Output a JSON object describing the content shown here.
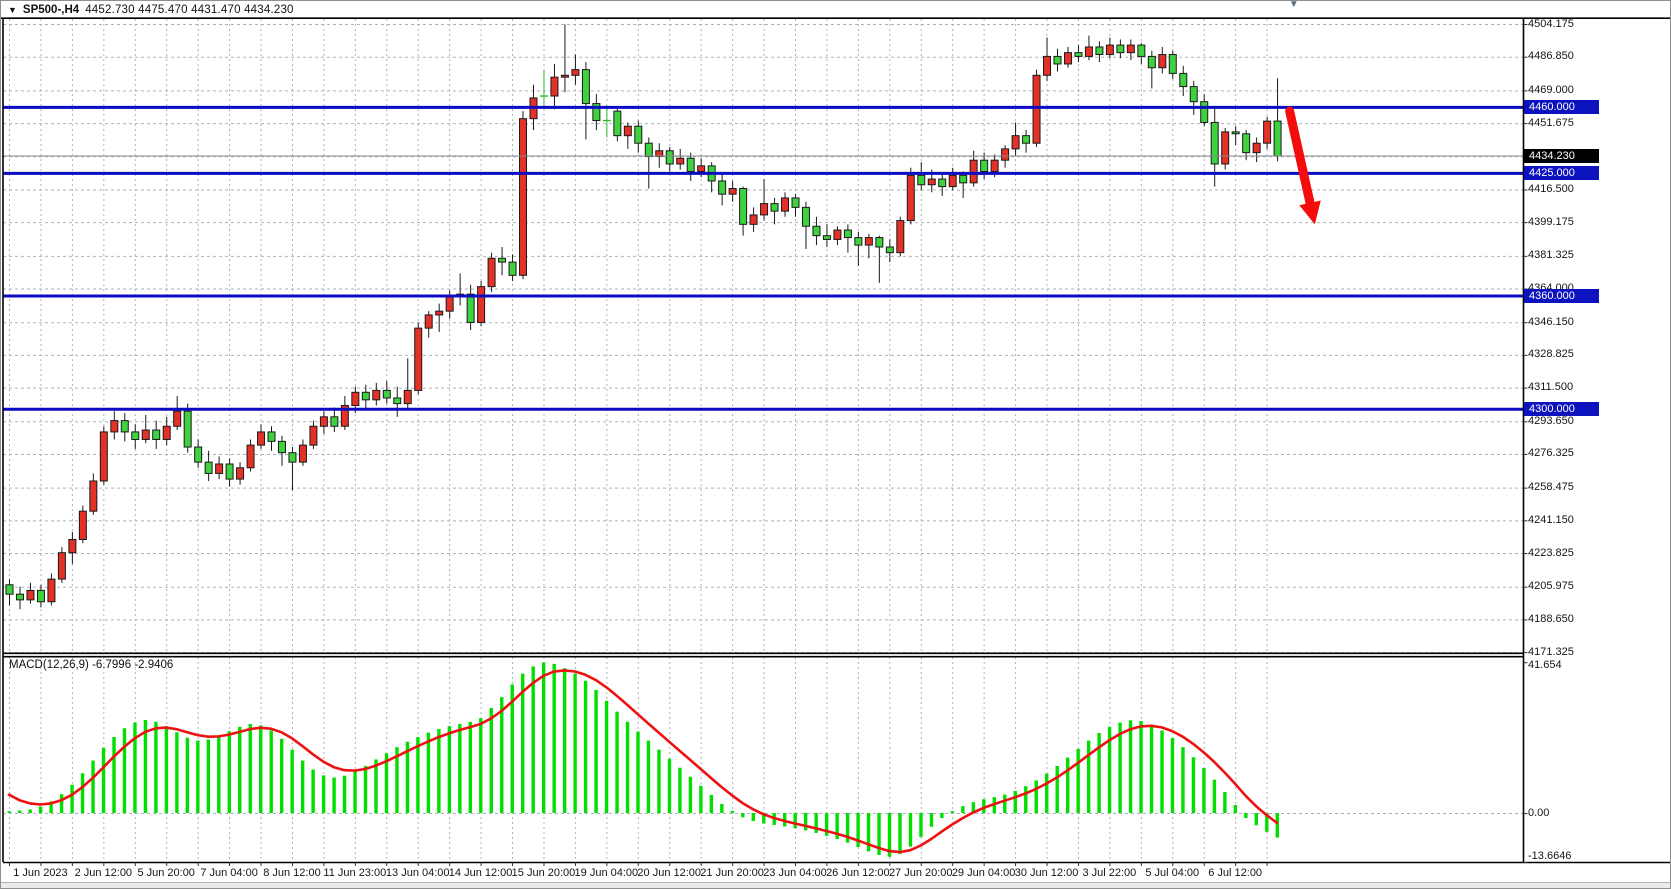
{
  "window": {
    "title": {
      "symbol": "SP500-,H4",
      "ohlc_text": "4452.730 4475.470 4431.470 4434.230",
      "open": "4452.730",
      "high": "4475.470",
      "low": "4431.470",
      "close": "4434.230"
    }
  },
  "indicator_label": {
    "name": "MACD(12,26,9)",
    "main_value": "-6.7996",
    "signal_value": "-2.9406"
  },
  "price_axis": {
    "labels": [
      "4504.175",
      "4486.850",
      "4469.000",
      "4451.675",
      "4416.500",
      "4399.175",
      "4381.325",
      "4364.000",
      "4346.150",
      "4328.825",
      "4311.500",
      "4293.650",
      "4276.325",
      "4258.475",
      "4241.150",
      "4223.825",
      "4205.975",
      "4188.650",
      "4171.325"
    ],
    "label_values": [
      4504.175,
      4486.85,
      4469.0,
      4451.675,
      4416.5,
      4399.175,
      4381.325,
      4364.0,
      4346.15,
      4328.825,
      4311.5,
      4293.65,
      4276.325,
      4258.475,
      4241.15,
      4223.825,
      4205.975,
      4188.65,
      4171.325
    ],
    "badges": [
      {
        "text": "4460.000",
        "price": 4460.0,
        "type": "level"
      },
      {
        "text": "4434.230",
        "price": 4434.23,
        "type": "current"
      },
      {
        "text": "4425.000",
        "price": 4425.0,
        "type": "level"
      },
      {
        "text": "4360.000",
        "price": 4360.0,
        "type": "level"
      },
      {
        "text": "4300.000",
        "price": 4300.0,
        "type": "level"
      }
    ]
  },
  "macd_axis": {
    "labels": [
      "41.654",
      "0.00",
      "-13.6646"
    ],
    "label_values": [
      41.654,
      0.0,
      -13.6646
    ]
  },
  "time_axis": {
    "labels": [
      {
        "text": "1 Jun 2023",
        "bar": 3
      },
      {
        "text": "2 Jun 12:00",
        "bar": 9
      },
      {
        "text": "5 Jun 20:00",
        "bar": 15
      },
      {
        "text": "7 Jun 04:00",
        "bar": 21
      },
      {
        "text": "8 Jun 12:00",
        "bar": 27
      },
      {
        "text": "11 Jun 23:00",
        "bar": 33
      },
      {
        "text": "13 Jun 04:00",
        "bar": 39
      },
      {
        "text": "14 Jun 12:00",
        "bar": 45
      },
      {
        "text": "15 Jun 20:00",
        "bar": 51
      },
      {
        "text": "19 Jun 04:00",
        "bar": 57
      },
      {
        "text": "20 Jun 12:00",
        "bar": 63
      },
      {
        "text": "21 Jun 20:00",
        "bar": 69
      },
      {
        "text": "23 Jun 04:00",
        "bar": 75
      },
      {
        "text": "26 Jun 12:00",
        "bar": 81
      },
      {
        "text": "27 Jun 20:00",
        "bar": 87
      },
      {
        "text": "29 Jun 04:00",
        "bar": 93
      },
      {
        "text": "30 Jun 12:00",
        "bar": 99
      },
      {
        "text": "3 Jul 22:00",
        "bar": 105
      },
      {
        "text": "5 Jul 04:00",
        "bar": 111
      },
      {
        "text": "6 Jul 12:00",
        "bar": 117
      }
    ]
  },
  "colors": {
    "bull": "#e33128",
    "bear": "#3ed23e",
    "candle_edge": "#1a1a1a",
    "macd_hist": "#00df00",
    "signal": "#ee1111",
    "hline": "#0b0bc4",
    "badge_level": "#0c12bd",
    "badge_current": "#000000",
    "grid": "#a9b3bf",
    "current_price_line": "#8a8a8a",
    "arrow": "#f40b0b",
    "green_doji": "#2eb82e"
  },
  "chart_data": {
    "type": "candlestick",
    "symbol": "SP500-",
    "timeframe": "H4",
    "price_ylim": [
      4171.325,
      4504.175
    ],
    "grid": true,
    "horizontal_lines": [
      4460.0,
      4425.0,
      4360.0,
      4300.0
    ],
    "current_price": 4434.23,
    "gridline_prices": [
      4504.175,
      4486.85,
      4469.0,
      4451.675,
      4434.1,
      4416.5,
      4399.175,
      4381.325,
      4364.0,
      4346.15,
      4328.825,
      4311.5,
      4293.65,
      4276.325,
      4258.475,
      4241.15,
      4223.825,
      4205.975,
      4188.65,
      4171.325
    ],
    "candles_format": "[open,high,low,close] per H4 bar, oldest first",
    "candles": [
      [
        4207,
        4210,
        4196,
        4202
      ],
      [
        4202,
        4206,
        4194,
        4199
      ],
      [
        4199,
        4208,
        4197,
        4204
      ],
      [
        4204,
        4207,
        4195,
        4198
      ],
      [
        4198,
        4213,
        4196,
        4210
      ],
      [
        4210,
        4227,
        4208,
        4224
      ],
      [
        4224,
        4235,
        4218,
        4231
      ],
      [
        4231,
        4249,
        4229,
        4246
      ],
      [
        4246,
        4266,
        4244,
        4262
      ],
      [
        4262,
        4291,
        4260,
        4288
      ],
      [
        4288,
        4299,
        4284,
        4294
      ],
      [
        4294,
        4298,
        4283,
        4288
      ],
      [
        4288,
        4292,
        4279,
        4284
      ],
      [
        4284,
        4297,
        4282,
        4289
      ],
      [
        4289,
        4294,
        4279,
        4284
      ],
      [
        4284,
        4296,
        4281,
        4291
      ],
      [
        4291,
        4307,
        4289,
        4299
      ],
      [
        4299,
        4303,
        4277,
        4280
      ],
      [
        4280,
        4284,
        4269,
        4272
      ],
      [
        4272,
        4278,
        4262,
        4266
      ],
      [
        4266,
        4275,
        4263,
        4271
      ],
      [
        4271,
        4274,
        4259,
        4263
      ],
      [
        4263,
        4272,
        4260,
        4269
      ],
      [
        4269,
        4284,
        4267,
        4281
      ],
      [
        4281,
        4292,
        4279,
        4288
      ],
      [
        4288,
        4291,
        4278,
        4283
      ],
      [
        4283,
        4286,
        4270,
        4277
      ],
      [
        4277,
        4280,
        4257,
        4272
      ],
      [
        4272,
        4284,
        4270,
        4281
      ],
      [
        4281,
        4294,
        4279,
        4291
      ],
      [
        4291,
        4299,
        4287,
        4296
      ],
      [
        4296,
        4301,
        4288,
        4291
      ],
      [
        4291,
        4307,
        4289,
        4302
      ],
      [
        4302,
        4312,
        4298,
        4309
      ],
      [
        4309,
        4313,
        4300,
        4305
      ],
      [
        4305,
        4314,
        4302,
        4310
      ],
      [
        4310,
        4315,
        4303,
        4306
      ],
      [
        4306,
        4312,
        4296,
        4303
      ],
      [
        4303,
        4327,
        4300,
        4310
      ],
      [
        4310,
        4346,
        4308,
        4343
      ],
      [
        4343,
        4352,
        4338,
        4350
      ],
      [
        4350,
        4356,
        4341,
        4352
      ],
      [
        4352,
        4363,
        4348,
        4360
      ],
      [
        4360,
        4372,
        4355,
        4361
      ],
      [
        4361,
        4366,
        4342,
        4346
      ],
      [
        4346,
        4368,
        4344,
        4365
      ],
      [
        4365,
        4383,
        4362,
        4380
      ],
      [
        4380,
        4386,
        4371,
        4378
      ],
      [
        4378,
        4382,
        4368,
        4371
      ],
      [
        4371,
        4458,
        4369,
        4454
      ],
      [
        4454,
        4472,
        4448,
        4465
      ],
      [
        4466,
        4480,
        4460,
        4466
      ],
      [
        4466,
        4483,
        4459,
        4476
      ],
      [
        4476,
        4504,
        4468,
        4477
      ],
      [
        4477,
        4488,
        4472,
        4480
      ],
      [
        4480,
        4484,
        4443,
        4462
      ],
      [
        4462,
        4467,
        4448,
        4453
      ],
      [
        4453,
        4461,
        4444,
        4453
      ],
      [
        4458,
        4460,
        4442,
        4445
      ],
      [
        4445,
        4452,
        4438,
        4450
      ],
      [
        4450,
        4453,
        4436,
        4441
      ],
      [
        4441,
        4444,
        4417,
        4434
      ],
      [
        4434,
        4441,
        4428,
        4437
      ],
      [
        4437,
        4439,
        4426,
        4430
      ],
      [
        4430,
        4438,
        4427,
        4433
      ],
      [
        4433,
        4436,
        4421,
        4426
      ],
      [
        4426,
        4433,
        4423,
        4429
      ],
      [
        4429,
        4431,
        4415,
        4421
      ],
      [
        4421,
        4425,
        4408,
        4414
      ],
      [
        4414,
        4421,
        4410,
        4417
      ],
      [
        4417,
        4418,
        4392,
        4398
      ],
      [
        4398,
        4407,
        4394,
        4403
      ],
      [
        4403,
        4422,
        4400,
        4409
      ],
      [
        4409,
        4412,
        4398,
        4405
      ],
      [
        4405,
        4415,
        4402,
        4412
      ],
      [
        4412,
        4414,
        4402,
        4407
      ],
      [
        4407,
        4410,
        4385,
        4397
      ],
      [
        4397,
        4402,
        4387,
        4392
      ],
      [
        4392,
        4398,
        4386,
        4390
      ],
      [
        4390,
        4397,
        4387,
        4395
      ],
      [
        4395,
        4398,
        4383,
        4391
      ],
      [
        4391,
        4394,
        4376,
        4387
      ],
      [
        4387,
        4393,
        4380,
        4391
      ],
      [
        4391,
        4392,
        4367,
        4386
      ],
      [
        4386,
        4390,
        4378,
        4383
      ],
      [
        4383,
        4402,
        4381,
        4400
      ],
      [
        4400,
        4428,
        4398,
        4424
      ],
      [
        4424,
        4431,
        4416,
        4419
      ],
      [
        4419,
        4427,
        4415,
        4422
      ],
      [
        4422,
        4425,
        4413,
        4418
      ],
      [
        4418,
        4428,
        4416,
        4424
      ],
      [
        4424,
        4426,
        4412,
        4420
      ],
      [
        4420,
        4437,
        4418,
        4432
      ],
      [
        4432,
        4436,
        4422,
        4426
      ],
      [
        4426,
        4435,
        4423,
        4432
      ],
      [
        4432,
        4440,
        4428,
        4438
      ],
      [
        4438,
        4452,
        4434,
        4445
      ],
      [
        4445,
        4448,
        4436,
        4441
      ],
      [
        4441,
        4480,
        4439,
        4477
      ],
      [
        4477,
        4497,
        4474,
        4487
      ],
      [
        4487,
        4491,
        4479,
        4483
      ],
      [
        4483,
        4492,
        4481,
        4489
      ],
      [
        4489,
        4493,
        4484,
        4487
      ],
      [
        4487,
        4498,
        4485,
        4492
      ],
      [
        4492,
        4495,
        4484,
        4488
      ],
      [
        4488,
        4497,
        4486,
        4493
      ],
      [
        4493,
        4496,
        4486,
        4489
      ],
      [
        4489,
        4496,
        4485,
        4493
      ],
      [
        4493,
        4494,
        4483,
        4487
      ],
      [
        4487,
        4490,
        4470,
        4481
      ],
      [
        4481,
        4492,
        4478,
        4488
      ],
      [
        4488,
        4490,
        4475,
        4478
      ],
      [
        4478,
        4482,
        4466,
        4471
      ],
      [
        4471,
        4474,
        4456,
        4463
      ],
      [
        4463,
        4467,
        4450,
        4452
      ],
      [
        4452,
        4460,
        4418,
        4430
      ],
      [
        4430,
        4449,
        4427,
        4447
      ],
      [
        4447,
        4450,
        4440,
        4446
      ],
      [
        4446,
        4448,
        4432,
        4436
      ],
      [
        4436,
        4444,
        4431,
        4441
      ],
      [
        4441,
        4455,
        4438,
        4452.7
      ],
      [
        4452.73,
        4475.47,
        4431.47,
        4434.23
      ]
    ],
    "green_doji_bars": [
      51,
      57
    ],
    "macd": {
      "params": "12,26,9",
      "ylim": [
        -13.6646,
        41.654
      ],
      "last_main": -6.7996,
      "last_signal": -2.9406,
      "signal_method": "EMA of histogram, alpha 0.35, seed 7.5",
      "values": [
        0.5,
        0.7,
        1.0,
        1.8,
        3.2,
        5.2,
        7.8,
        11.0,
        14.5,
        18.0,
        21.0,
        23.4,
        25.0,
        25.7,
        25.2,
        24.0,
        22.3,
        20.8,
        20.0,
        20.3,
        21.3,
        22.6,
        23.8,
        24.6,
        24.2,
        22.8,
        20.5,
        17.5,
        14.5,
        12.0,
        10.4,
        9.8,
        10.3,
        11.5,
        13.0,
        14.8,
        16.5,
        18.2,
        19.7,
        21.0,
        22.2,
        23.2,
        24.0,
        24.6,
        25.2,
        26.2,
        29.0,
        32.0,
        35.5,
        38.5,
        40.5,
        41.6,
        41.2,
        40.0,
        38.5,
        36.5,
        34.0,
        31.0,
        28.0,
        25.2,
        22.5,
        20.0,
        17.5,
        15.0,
        12.5,
        10.0,
        7.5,
        5.0,
        2.5,
        0.6,
        -1.2,
        -2.2,
        -2.9,
        -3.3,
        -3.7,
        -4.2,
        -4.8,
        -5.5,
        -6.3,
        -7.2,
        -8.2,
        -9.4,
        -10.6,
        -11.6,
        -12.1,
        -11.3,
        -9.3,
        -6.6,
        -3.8,
        -1.4,
        0.5,
        1.9,
        3.0,
        3.8,
        4.4,
        5.1,
        6.1,
        7.4,
        9.0,
        10.9,
        13.0,
        15.3,
        17.7,
        20.0,
        22.1,
        23.8,
        25.0,
        25.6,
        25.4,
        24.4,
        22.8,
        20.7,
        18.2,
        15.4,
        12.4,
        9.2,
        5.8,
        2.2,
        -1.4,
        -3.4,
        -5.2,
        -6.8
      ]
    },
    "annotations": {
      "down_arrow": {
        "from_bar": 122.2,
        "from_price": 4458,
        "to_bar": 124.6,
        "to_price": 4398
      },
      "shift_marker_bar": 122.6
    }
  }
}
